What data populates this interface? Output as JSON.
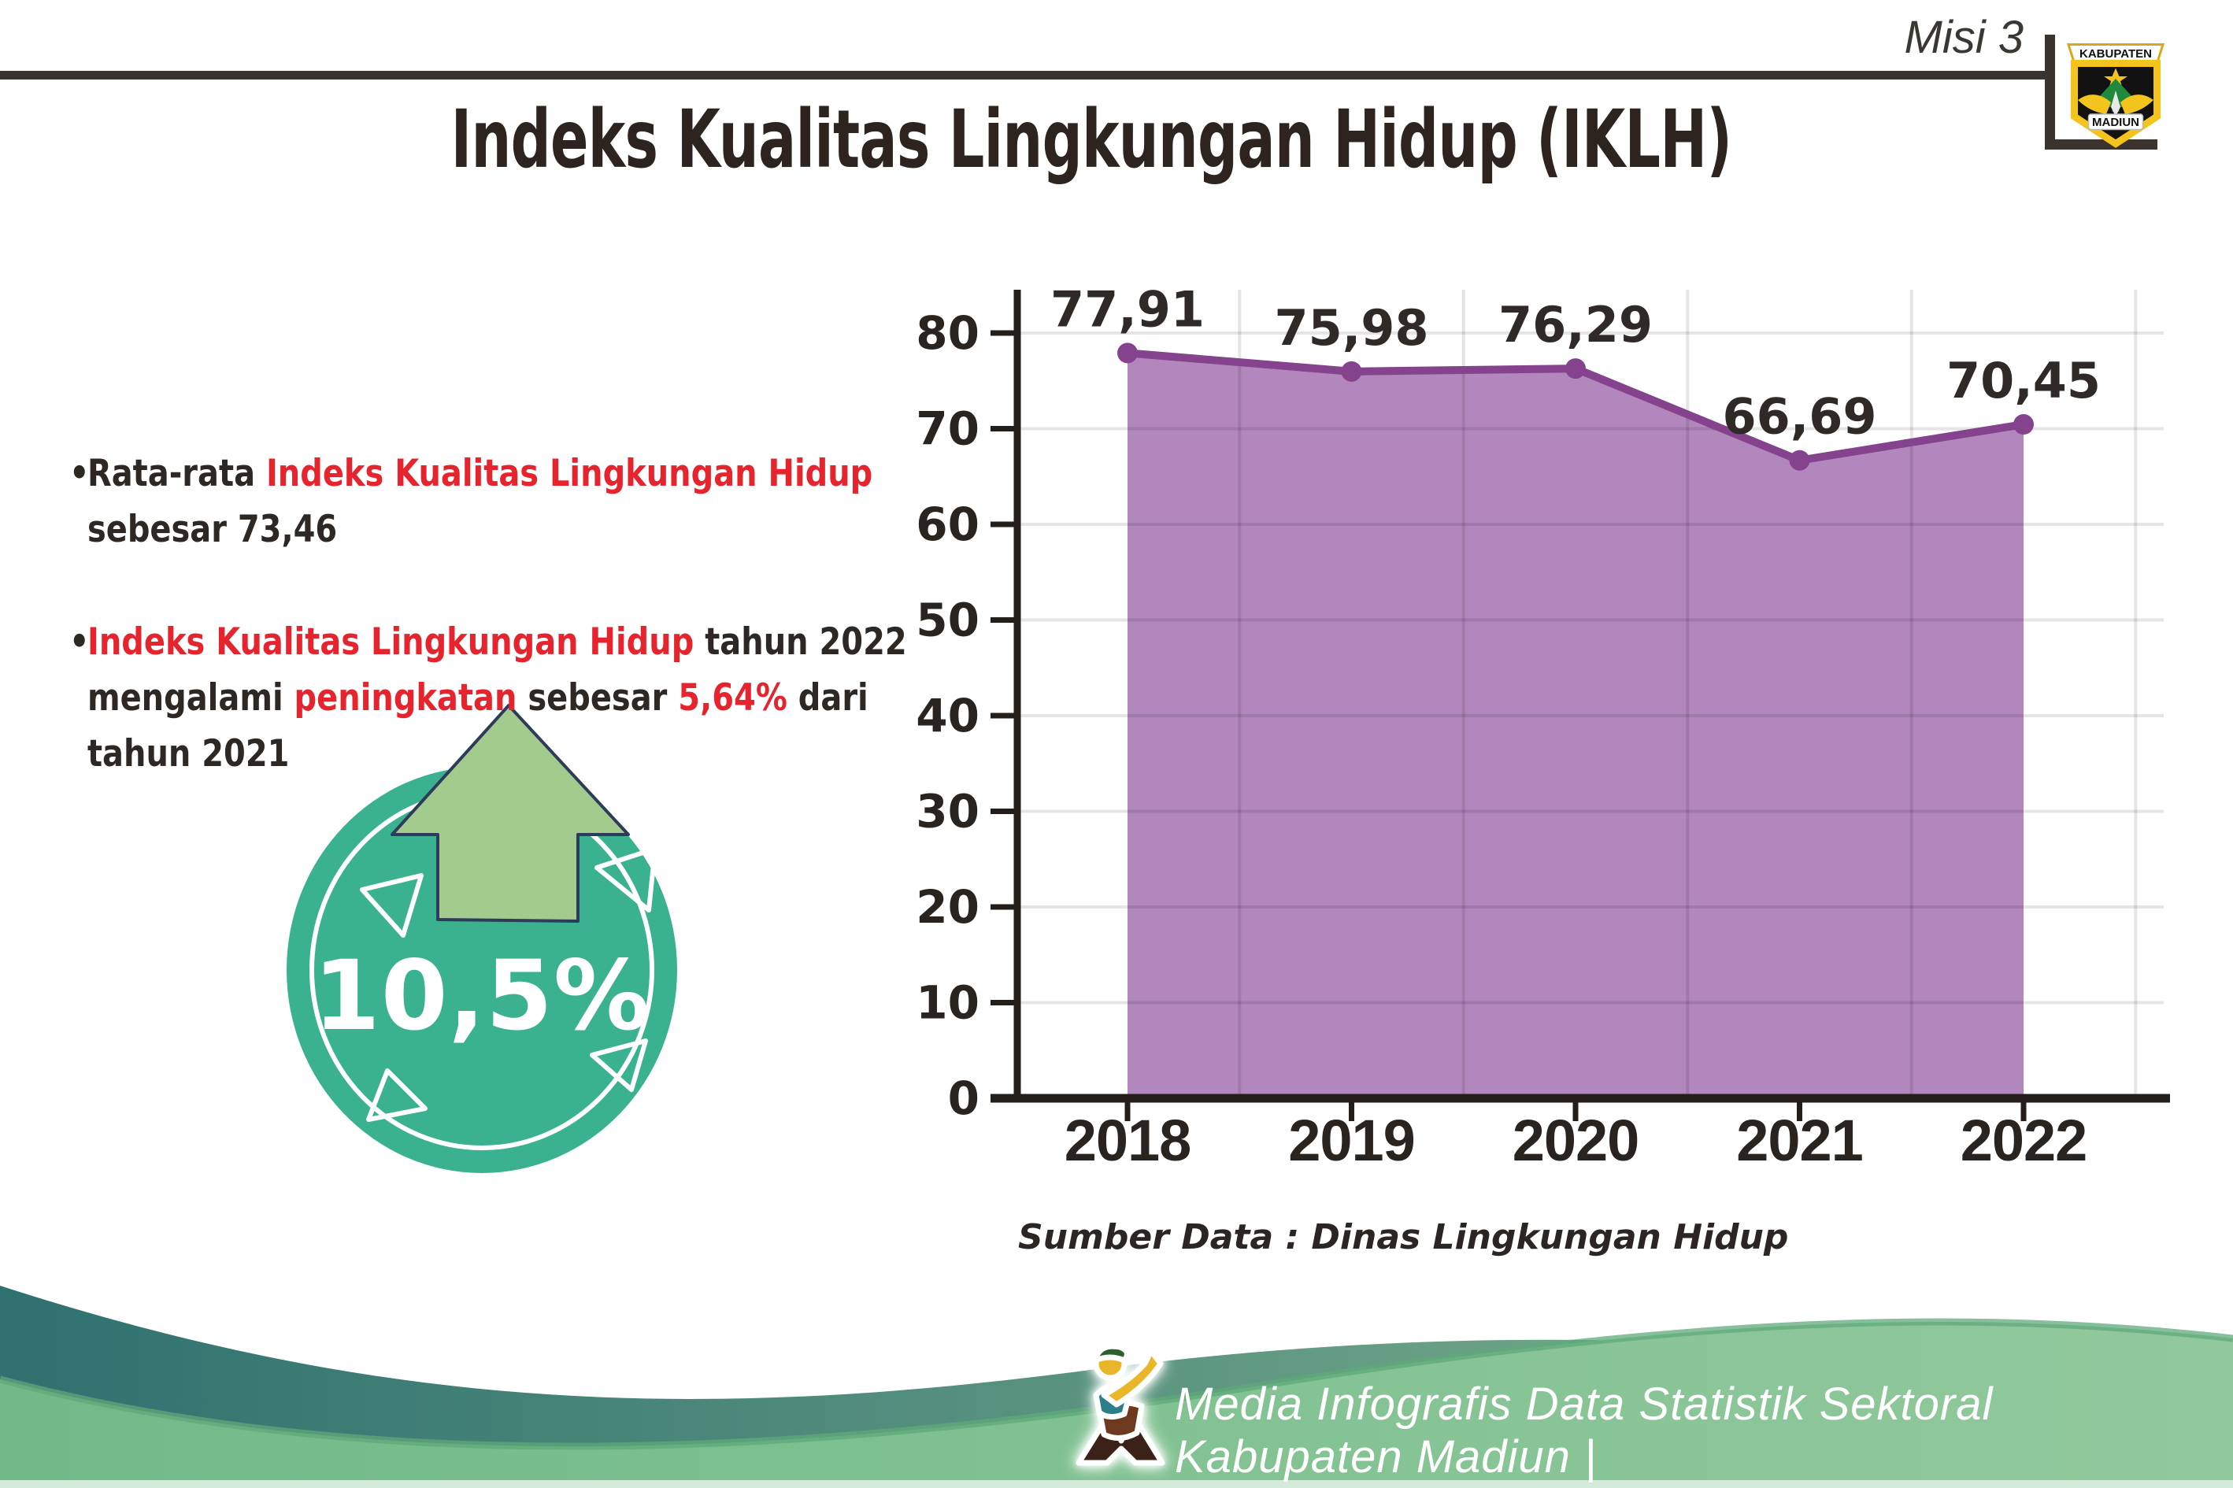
{
  "header": {
    "misi_label": "Misi 3",
    "title": "Indeks Kualitas Lingkungan Hidup (IKLH)",
    "logo": {
      "name": "kabupaten-madiun-emblem",
      "banner_text": "KABUPATEN",
      "bottom_text": "MADIUN"
    }
  },
  "bullets": {
    "dot": "•",
    "b1": {
      "l1": [
        {
          "text": "Rata-rata ",
          "color": "dark"
        },
        {
          "text": "Indeks Kualitas Lingkungan Hidup",
          "color": "red"
        }
      ],
      "l2": [
        {
          "text": "sebesar 73,46",
          "color": "dark"
        }
      ]
    },
    "b2": {
      "l1": [
        {
          "text": "Indeks Kualitas Lingkungan Hidup",
          "color": "red"
        },
        {
          "text": " tahun 2022",
          "color": "dark"
        }
      ],
      "l2": [
        {
          "text": "mengalami ",
          "color": "dark"
        },
        {
          "text": "peningkatan",
          "color": "red"
        },
        {
          "text": " sebesar ",
          "color": "dark"
        },
        {
          "text": "5,64%",
          "color": "red"
        },
        {
          "text": " dari",
          "color": "dark"
        }
      ],
      "l3": [
        {
          "text": "tahun 2021",
          "color": "dark"
        }
      ]
    }
  },
  "badge": {
    "value_label": "10,5%",
    "circle_color": "#3bb28f",
    "arrow_color": "#a4cb8e",
    "arrow_outline": "#2e3b5a"
  },
  "chart_data": {
    "type": "area",
    "title": "",
    "xlabel": "",
    "ylabel": "",
    "categories": [
      "2018",
      "2019",
      "2020",
      "2021",
      "2022"
    ],
    "values": [
      77.91,
      75.98,
      76.29,
      66.69,
      70.45
    ],
    "point_labels": [
      "77,91",
      "75,98",
      "76,29",
      "66,69",
      "70,45"
    ],
    "ylim": [
      0,
      80
    ],
    "ytick_step": 10,
    "grid": true,
    "legend": "none",
    "source_note": "Sumber Data : Dinas Lingkungan Hidup",
    "colors": {
      "area_fill": "#b287be",
      "line": "#85428d",
      "marker": "#85428d",
      "axis": "#241e1a",
      "tick_label": "#29241f",
      "data_label": "#2f2a27",
      "gridline": "rgba(0,0,0,0.10)"
    }
  },
  "footer": {
    "credit_text": "Media Infografis Data Statistik Sektoral Kabupaten Madiun |",
    "mascot_icon": "dancing-person-logo",
    "teal_color": "#2f7170",
    "green_color": "#76bd8b"
  }
}
